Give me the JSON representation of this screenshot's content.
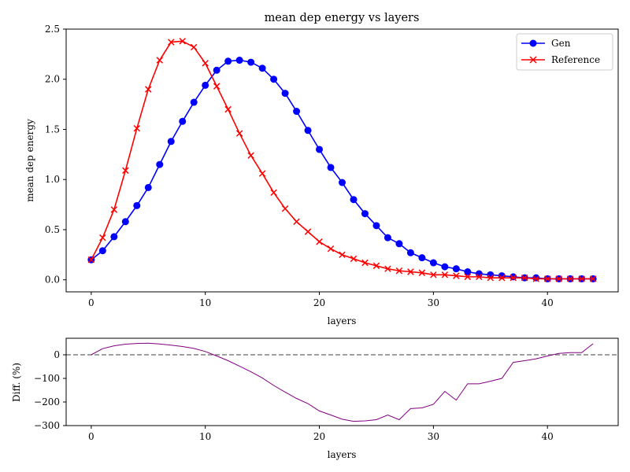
{
  "chart_data": [
    {
      "type": "line",
      "title": "mean dep energy vs layers",
      "xlabel": "layers",
      "ylabel": "mean dep energy",
      "xlim": [
        -2.2,
        46.2
      ],
      "ylim": [
        -0.12,
        2.5
      ],
      "xticks": [
        0,
        10,
        20,
        30,
        40
      ],
      "yticks": [
        0.0,
        0.5,
        1.0,
        1.5,
        2.0,
        2.5
      ],
      "ytick_labels": [
        "0.0",
        "0.5",
        "1.0",
        "1.5",
        "2.0",
        "2.5"
      ],
      "legend_position": "top-right",
      "grid": false,
      "series": [
        {
          "name": "Gen",
          "color": "#0000ff",
          "marker": "circle",
          "x": [
            0,
            1,
            2,
            3,
            4,
            5,
            6,
            7,
            8,
            9,
            10,
            11,
            12,
            13,
            14,
            15,
            16,
            17,
            18,
            19,
            20,
            21,
            22,
            23,
            24,
            25,
            26,
            27,
            28,
            29,
            30,
            31,
            32,
            33,
            34,
            35,
            36,
            37,
            38,
            39,
            40,
            41,
            42,
            43,
            44
          ],
          "values": [
            0.2,
            0.29,
            0.43,
            0.58,
            0.74,
            0.92,
            1.15,
            1.38,
            1.58,
            1.77,
            1.94,
            2.09,
            2.18,
            2.19,
            2.17,
            2.11,
            2.0,
            1.86,
            1.68,
            1.49,
            1.3,
            1.12,
            0.97,
            0.8,
            0.66,
            0.54,
            0.42,
            0.36,
            0.27,
            0.22,
            0.17,
            0.13,
            0.11,
            0.08,
            0.06,
            0.05,
            0.04,
            0.03,
            0.02,
            0.02,
            0.01,
            0.01,
            0.01,
            0.01,
            0.01
          ]
        },
        {
          "name": "Reference",
          "color": "#ff0000",
          "marker": "x",
          "x": [
            0,
            1,
            2,
            3,
            4,
            5,
            6,
            7,
            8,
            9,
            10,
            11,
            12,
            13,
            14,
            15,
            16,
            17,
            18,
            19,
            20,
            21,
            22,
            23,
            24,
            25,
            26,
            27,
            28,
            29,
            30,
            31,
            32,
            33,
            34,
            35,
            36,
            37,
            38,
            39,
            40,
            41,
            42,
            43,
            44
          ],
          "values": [
            0.2,
            0.42,
            0.7,
            1.09,
            1.51,
            1.9,
            2.19,
            2.37,
            2.38,
            2.32,
            2.16,
            1.93,
            1.7,
            1.46,
            1.24,
            1.06,
            0.87,
            0.71,
            0.58,
            0.48,
            0.38,
            0.31,
            0.25,
            0.21,
            0.17,
            0.14,
            0.11,
            0.09,
            0.08,
            0.07,
            0.05,
            0.05,
            0.04,
            0.03,
            0.03,
            0.02,
            0.02,
            0.02,
            0.02,
            0.01,
            0.01,
            0.01,
            0.01,
            0.01,
            0.01
          ]
        }
      ]
    },
    {
      "type": "line",
      "xlabel": "layers",
      "ylabel": "Diff. (%)",
      "xlim": [
        -2.2,
        46.2
      ],
      "ylim": [
        -300,
        70
      ],
      "xticks": [
        0,
        10,
        20,
        30,
        40
      ],
      "yticks": [
        0,
        -100,
        -200,
        -300
      ],
      "ytick_labels": [
        "0",
        "−100",
        "−200",
        "−300"
      ],
      "reference_line": {
        "y": 0,
        "style": "dashed",
        "color": "#808080"
      },
      "grid": false,
      "series": [
        {
          "color": "#800080",
          "x": [
            0,
            1,
            2,
            3,
            4,
            5,
            6,
            7,
            8,
            9,
            10,
            11,
            12,
            13,
            14,
            15,
            16,
            17,
            18,
            19,
            20,
            21,
            22,
            23,
            24,
            25,
            26,
            27,
            28,
            29,
            30,
            31,
            32,
            33,
            34,
            35,
            36,
            37,
            38,
            39,
            40,
            41,
            42,
            43,
            44
          ],
          "values": [
            0,
            26,
            38,
            45,
            48,
            49,
            46,
            41,
            35,
            27,
            14,
            -5,
            -25,
            -48,
            -72,
            -98,
            -130,
            -158,
            -185,
            -207,
            -238,
            -255,
            -273,
            -282,
            -280,
            -275,
            -255,
            -275,
            -228,
            -225,
            -210,
            -155,
            -192,
            -123,
            -123,
            -112,
            -100,
            -32,
            -25,
            -17,
            -5,
            6,
            9,
            9,
            47
          ]
        }
      ]
    }
  ]
}
